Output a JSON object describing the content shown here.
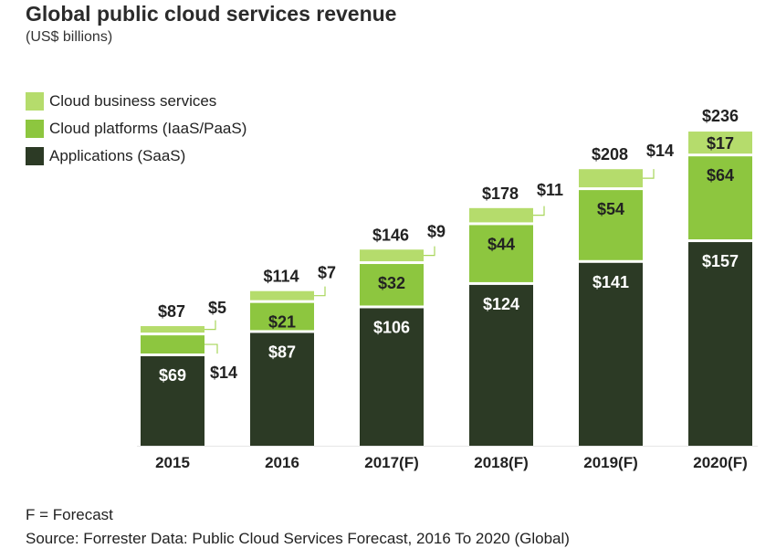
{
  "title": "Global public cloud services revenue",
  "subtitle": "(US$ billions)",
  "footnote": "F = Forecast",
  "source": "Source: Forrester Data: Public Cloud Services Forecast, 2016 To 2020 (Global)",
  "colors": {
    "applications": "#2c3a25",
    "platforms": "#8dc63f",
    "business": "#b5dc6c",
    "leader": "#a8d65a"
  },
  "chart_data": {
    "type": "bar",
    "stacked": true,
    "categories": [
      "2015",
      "2016",
      "2017(F)",
      "2018(F)",
      "2019(F)",
      "2020(F)"
    ],
    "series": [
      {
        "name": "Applications (SaaS)",
        "values": [
          69,
          87,
          106,
          124,
          141,
          157
        ],
        "labels": [
          "$69",
          "$87",
          "$106",
          "$124",
          "$141",
          "$157"
        ]
      },
      {
        "name": "Cloud platforms (IaaS/PaaS)",
        "values": [
          14,
          21,
          32,
          44,
          54,
          64
        ],
        "labels": [
          "$14",
          "$21",
          "$32",
          "$44",
          "$54",
          "$64"
        ]
      },
      {
        "name": "Cloud business services",
        "values": [
          5,
          7,
          9,
          11,
          14,
          17
        ],
        "labels": [
          "$5",
          "$7",
          "$9",
          "$11",
          "$14",
          "$17"
        ]
      }
    ],
    "totals": [
      87,
      114,
      146,
      178,
      208,
      236
    ],
    "total_labels": [
      "$87",
      "$114",
      "$146",
      "$178",
      "$208",
      "$236"
    ],
    "legend_position": "top-left",
    "grid": false
  }
}
